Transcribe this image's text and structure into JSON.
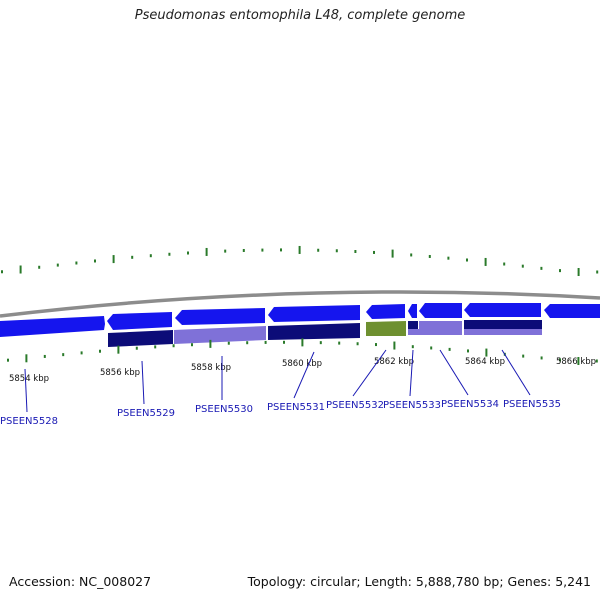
{
  "title": "Pseudomonas entomophila L48, complete genome",
  "footer": {
    "accession": "Accession: NC_008027",
    "summary": "Topology: circular; Length: 5,888,780 bp; Genes: 5,241"
  },
  "colors": {
    "backbone": "#8c8c8c",
    "gene_bright": "#1515ee",
    "gene_dark": "#0c0c78",
    "gene_light": "#7f71d8",
    "gene_green": "#6e9030",
    "tick_green": "#2a7a2a",
    "label_blue": "#1a1ab4"
  },
  "kbp_labels": [
    "5854 kbp",
    "5856 kbp",
    "5858 kbp",
    "5860 kbp",
    "5862 kbp",
    "5864 kbp",
    "5866 kbp"
  ],
  "genes": [
    "PSEEN5528",
    "PSEEN5529",
    "PSEEN5530",
    "PSEEN5531",
    "PSEEN5532",
    "PSEEN5533",
    "PSEEN5534",
    "PSEEN5535"
  ]
}
